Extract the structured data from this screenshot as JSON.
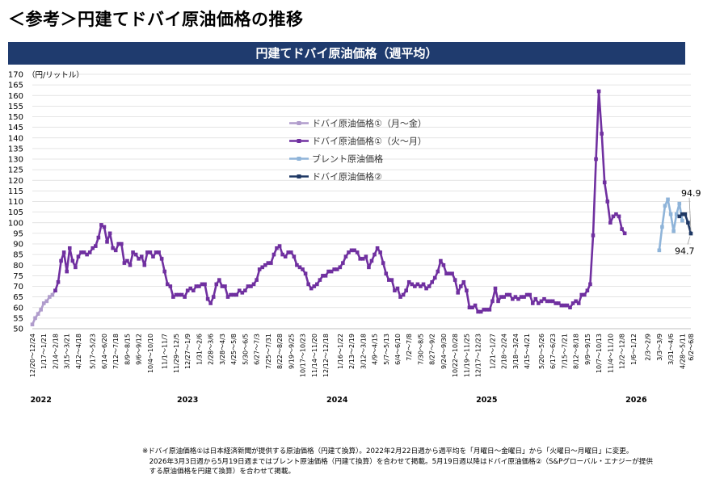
{
  "page_title": "＜参考＞円建てドバイ原油価格の推移",
  "chart_title": "円建てドバイ原油価格（週平均）",
  "note_lines": [
    "※ドバイ原油価格①は日本経済新聞が提供する原油価格（円建て換算）。2022年2月22日週から週平均を「月曜日～金曜日」から「火曜日～月曜日」に変更。",
    "　2026年3月3日週から5月19日週まではブレント原油価格（円建て換算）を合わせて掲載。5月19日週以降はドバイ原油価格②（S&Pグローバル・エナジーが提供",
    "　する原油価格を円建て換算）を合わせて掲載。"
  ],
  "colors": {
    "banner": "#1f3b6e",
    "series_1": "#b09ccc",
    "series_2": "#7030a0",
    "series_3": "#8fb4d9",
    "series_4": "#1f3864",
    "grid": "#dcdcdc"
  },
  "chart_data": {
    "type": "line",
    "title": "円建てドバイ原油価格（週平均）",
    "ylabel": "（円/リットル）",
    "ylim": [
      50,
      170
    ],
    "ytick_step": 5,
    "grid": true,
    "legend_position": "upper-left inside plot",
    "x_unit": "week index (2021-12-20 = 0)",
    "x_ticks": [
      {
        "i": 0,
        "label": "12/20～12/24"
      },
      {
        "i": 4,
        "label": "1/17～1/21"
      },
      {
        "i": 8,
        "label": "2/14～2/18"
      },
      {
        "i": 12,
        "label": "3/15～3/21"
      },
      {
        "i": 16,
        "label": "4/12～4/18"
      },
      {
        "i": 21,
        "label": "5/17～5/23"
      },
      {
        "i": 25,
        "label": "6/14～6/20"
      },
      {
        "i": 29,
        "label": "7/12～7/18"
      },
      {
        "i": 33,
        "label": "8/9～8/15"
      },
      {
        "i": 37,
        "label": "9/6～9/12"
      },
      {
        "i": 41,
        "label": "10/4～10/10"
      },
      {
        "i": 46,
        "label": "11/1～11/7"
      },
      {
        "i": 50,
        "label": "11/29～12/5"
      },
      {
        "i": 54,
        "label": "12/27～1/9"
      },
      {
        "i": 58,
        "label": "1/31～2/6"
      },
      {
        "i": 62,
        "label": "2/28～3/6"
      },
      {
        "i": 66,
        "label": "3/28～4/3"
      },
      {
        "i": 70,
        "label": "4/25～5/8"
      },
      {
        "i": 74,
        "label": "5/30～6/5"
      },
      {
        "i": 78,
        "label": "6/27～7/3"
      },
      {
        "i": 82,
        "label": "7/25～7/31"
      },
      {
        "i": 86,
        "label": "8/22～8/28"
      },
      {
        "i": 90,
        "label": "9/19～9/25"
      },
      {
        "i": 94,
        "label": "10/17～10/23"
      },
      {
        "i": 98,
        "label": "11/14～11/20"
      },
      {
        "i": 102,
        "label": "12/12～12/18"
      },
      {
        "i": 107,
        "label": "1/16～1/22"
      },
      {
        "i": 111,
        "label": "2/13～2/19"
      },
      {
        "i": 115,
        "label": "3/12～3/18"
      },
      {
        "i": 119,
        "label": "4/9～4/15"
      },
      {
        "i": 123,
        "label": "5/7～5/13"
      },
      {
        "i": 127,
        "label": "6/4～6/10"
      },
      {
        "i": 131,
        "label": "7/2～7/8"
      },
      {
        "i": 135,
        "label": "7/30～8/5"
      },
      {
        "i": 139,
        "label": "8/27～9/2"
      },
      {
        "i": 143,
        "label": "9/24～9/30"
      },
      {
        "i": 147,
        "label": "10/22～10/28"
      },
      {
        "i": 151,
        "label": "11/19～11/25"
      },
      {
        "i": 155,
        "label": "12/17～12/23"
      },
      {
        "i": 160,
        "label": "1/21～1/27"
      },
      {
        "i": 164,
        "label": "2/18～2/24"
      },
      {
        "i": 168,
        "label": "3/18～3/24"
      },
      {
        "i": 172,
        "label": "4/15～4/21"
      },
      {
        "i": 177,
        "label": "5/20～5/26"
      },
      {
        "i": 181,
        "label": "6/17～6/23"
      },
      {
        "i": 185,
        "label": "7/15～7/21"
      },
      {
        "i": 189,
        "label": "8/12～8/18"
      },
      {
        "i": 193,
        "label": "9/9～9/15"
      },
      {
        "i": 197,
        "label": "10/7～10/13"
      },
      {
        "i": 201,
        "label": "11/4～11/10"
      },
      {
        "i": 205,
        "label": "12/2～12/8"
      },
      {
        "i": 209,
        "label": "1/6～1/12"
      },
      {
        "i": 214,
        "label": "2/3～2/9"
      },
      {
        "i": 218,
        "label": "3/3～3/9"
      },
      {
        "i": 222,
        "label": "3/31～4/6"
      },
      {
        "i": 226,
        "label": "4/28～5/11"
      },
      {
        "i": 229,
        "label": "6/2～6/8"
      }
    ],
    "year_labels": [
      {
        "i": 3,
        "label": "2022"
      },
      {
        "i": 54,
        "label": "2023"
      },
      {
        "i": 106,
        "label": "2024"
      },
      {
        "i": 158,
        "label": "2025"
      },
      {
        "i": 210,
        "label": "2026"
      }
    ],
    "series": [
      {
        "name": "ドバイ原油価格①（月～金）",
        "x_start": 0,
        "values": [
          52,
          55,
          57,
          59,
          62,
          63,
          65,
          66,
          68
        ]
      },
      {
        "name": "ドバイ原油価格①（火～月）",
        "x_start": 8,
        "values": [
          68,
          72,
          82,
          86,
          77,
          88,
          82,
          79,
          84,
          86,
          86,
          85,
          86,
          88,
          89,
          93,
          99,
          98,
          91,
          95,
          88,
          87,
          90,
          90,
          81,
          82,
          80,
          86,
          85,
          83,
          84,
          80,
          86,
          86,
          84,
          86,
          86,
          83,
          77,
          71,
          70,
          65,
          66,
          66,
          66,
          65,
          68,
          69,
          68,
          70,
          70,
          71,
          71,
          64,
          62,
          65,
          71,
          73,
          70,
          70,
          65,
          66,
          66,
          66,
          68,
          67,
          68,
          70,
          70,
          71,
          73,
          78,
          79,
          80,
          81,
          81,
          85,
          88,
          89,
          85,
          84,
          86,
          86,
          84,
          80,
          79,
          78,
          76,
          71,
          69,
          70,
          71,
          73,
          75,
          75,
          77,
          77,
          78,
          78,
          79,
          81,
          84,
          86,
          87,
          87,
          86,
          83,
          83,
          84,
          79,
          82,
          85,
          88,
          86,
          81,
          76,
          73,
          73,
          68,
          69,
          65,
          66,
          68,
          72,
          71,
          70,
          71,
          70,
          71,
          69,
          70,
          72,
          74,
          77,
          82,
          80,
          76,
          76,
          76,
          73,
          67,
          70,
          72,
          68,
          60,
          60,
          61,
          58,
          58,
          59,
          59,
          59,
          63,
          69,
          63,
          65,
          65,
          66,
          66,
          64,
          65,
          64,
          65,
          65,
          66,
          66,
          62,
          64,
          62,
          63,
          64,
          63,
          63,
          63,
          62,
          62,
          61,
          61,
          61,
          60,
          62,
          63,
          62,
          66,
          66,
          68,
          71,
          94,
          130,
          162,
          142,
          119,
          110,
          100,
          103,
          104,
          103,
          97,
          95
        ]
      },
      {
        "name": "ブレント原油価格",
        "x_start": 218,
        "values": [
          87,
          98,
          108,
          111,
          104,
          96,
          104,
          109,
          101
        ]
      },
      {
        "name": "ドバイ原油価格②",
        "x_start": 225,
        "values": [
          103,
          104,
          104,
          100,
          94.9
        ]
      }
    ],
    "dashed_segment": {
      "series": "ドバイ原油価格①（火～月）",
      "x_from": 214,
      "x_to": 218
    },
    "annotations": [
      {
        "text": "94.9",
        "x": 229,
        "y": 94.9
      },
      {
        "text": "94.7",
        "x": 229,
        "y": 94.7
      }
    ]
  }
}
